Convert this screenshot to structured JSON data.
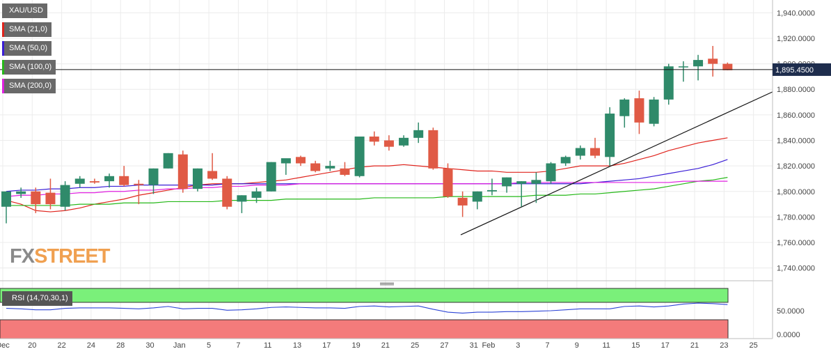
{
  "brand": {
    "logo_fx": "FX",
    "logo_street": "STREET"
  },
  "legend": [
    {
      "label": "XAU/USD",
      "color": "#696969"
    },
    {
      "label": "SMA (21,0)",
      "color": "#e0231c"
    },
    {
      "label": "SMA (50,0)",
      "color": "#3a1ed6"
    },
    {
      "label": "SMA (100,0)",
      "color": "#25b818"
    },
    {
      "label": "SMA (200,0)",
      "color": "#e020e0"
    }
  ],
  "rsi": {
    "label": "RSI (14,70,30,1)",
    "levels": [
      "50.0000",
      "0.0000"
    ],
    "upper_zone_color": "#7af07a",
    "lower_zone_color": "#f47b7b",
    "line_color": "#2b43d6"
  },
  "colors": {
    "bull": "#2f8a6a",
    "bear": "#e05a45",
    "grid": "#ececec"
  },
  "chart_data": {
    "type": "candlestick",
    "title": "XAU/USD",
    "ylim": [
      1730,
      1950
    ],
    "y_ticks": [
      "1,740.0000",
      "1,760.0000",
      "1,780.0000",
      "1,800.0000",
      "1,820.0000",
      "1,840.0000",
      "1,860.0000",
      "1,880.0000",
      "1,900.0000",
      "1,920.0000",
      "1,940.0000"
    ],
    "current_price": 1895.45,
    "current_price_label": "1,895.4500",
    "x_tick_labels": [
      "Dec",
      "20",
      "22",
      "24",
      "28",
      "30",
      "Jan",
      "5",
      "7",
      "11",
      "13",
      "17",
      "19",
      "21",
      "25",
      "27",
      "31",
      "Feb",
      "3",
      "7",
      "9",
      "11",
      "15",
      "17",
      "21",
      "23",
      "25"
    ],
    "candles": [
      {
        "o": 1788,
        "h": 1800,
        "l": 1775,
        "c": 1800
      },
      {
        "o": 1798,
        "h": 1803,
        "l": 1795,
        "c": 1800
      },
      {
        "o": 1800,
        "h": 1803,
        "l": 1783,
        "c": 1790
      },
      {
        "o": 1799,
        "h": 1810,
        "l": 1786,
        "c": 1790
      },
      {
        "o": 1788,
        "h": 1808,
        "l": 1785,
        "c": 1805
      },
      {
        "o": 1806,
        "h": 1812,
        "l": 1803,
        "c": 1810
      },
      {
        "o": 1808,
        "h": 1810,
        "l": 1806,
        "c": 1807
      },
      {
        "o": 1808,
        "h": 1814,
        "l": 1803,
        "c": 1812
      },
      {
        "o": 1812,
        "h": 1820,
        "l": 1804,
        "c": 1805
      },
      {
        "o": 1806,
        "h": 1809,
        "l": 1790,
        "c": 1805
      },
      {
        "o": 1805,
        "h": 1818,
        "l": 1798,
        "c": 1818
      },
      {
        "o": 1818,
        "h": 1830,
        "l": 1818,
        "c": 1830
      },
      {
        "o": 1829,
        "h": 1832,
        "l": 1799,
        "c": 1802
      },
      {
        "o": 1802,
        "h": 1818,
        "l": 1800,
        "c": 1818
      },
      {
        "o": 1816,
        "h": 1830,
        "l": 1809,
        "c": 1810
      },
      {
        "o": 1810,
        "h": 1812,
        "l": 1786,
        "c": 1788
      },
      {
        "o": 1792,
        "h": 1797,
        "l": 1783,
        "c": 1797
      },
      {
        "o": 1795,
        "h": 1803,
        "l": 1791,
        "c": 1800
      },
      {
        "o": 1800,
        "h": 1823,
        "l": 1800,
        "c": 1823
      },
      {
        "o": 1822,
        "h": 1825,
        "l": 1813,
        "c": 1826
      },
      {
        "o": 1827,
        "h": 1828,
        "l": 1820,
        "c": 1822
      },
      {
        "o": 1822,
        "h": 1824,
        "l": 1815,
        "c": 1816
      },
      {
        "o": 1818,
        "h": 1824,
        "l": 1816,
        "c": 1820
      },
      {
        "o": 1818,
        "h": 1823,
        "l": 1812,
        "c": 1813
      },
      {
        "o": 1812,
        "h": 1843,
        "l": 1811,
        "c": 1843
      },
      {
        "o": 1843,
        "h": 1847,
        "l": 1836,
        "c": 1839
      },
      {
        "o": 1840,
        "h": 1844,
        "l": 1832,
        "c": 1835
      },
      {
        "o": 1836,
        "h": 1844,
        "l": 1835,
        "c": 1842
      },
      {
        "o": 1842,
        "h": 1854,
        "l": 1838,
        "c": 1848
      },
      {
        "o": 1848,
        "h": 1850,
        "l": 1817,
        "c": 1818
      },
      {
        "o": 1818,
        "h": 1822,
        "l": 1795,
        "c": 1796
      },
      {
        "o": 1795,
        "h": 1800,
        "l": 1780,
        "c": 1789
      },
      {
        "o": 1792,
        "h": 1800,
        "l": 1786,
        "c": 1800
      },
      {
        "o": 1800,
        "h": 1810,
        "l": 1797,
        "c": 1801
      },
      {
        "o": 1804,
        "h": 1811,
        "l": 1799,
        "c": 1811
      },
      {
        "o": 1806,
        "h": 1808,
        "l": 1788,
        "c": 1808
      },
      {
        "o": 1806,
        "h": 1815,
        "l": 1791,
        "c": 1809
      },
      {
        "o": 1808,
        "h": 1823,
        "l": 1806,
        "c": 1822
      },
      {
        "o": 1822,
        "h": 1828,
        "l": 1820,
        "c": 1827
      },
      {
        "o": 1828,
        "h": 1836,
        "l": 1825,
        "c": 1834
      },
      {
        "o": 1834,
        "h": 1842,
        "l": 1826,
        "c": 1828
      },
      {
        "o": 1827,
        "h": 1866,
        "l": 1820,
        "c": 1861
      },
      {
        "o": 1859,
        "h": 1873,
        "l": 1850,
        "c": 1872
      },
      {
        "o": 1873,
        "h": 1879,
        "l": 1845,
        "c": 1854
      },
      {
        "o": 1853,
        "h": 1874,
        "l": 1851,
        "c": 1872
      },
      {
        "o": 1872,
        "h": 1900,
        "l": 1868,
        "c": 1898
      },
      {
        "o": 1898,
        "h": 1902,
        "l": 1886,
        "c": 1898
      },
      {
        "o": 1898,
        "h": 1907,
        "l": 1887,
        "c": 1903
      },
      {
        "o": 1904,
        "h": 1914,
        "l": 1890,
        "c": 1900
      },
      {
        "o": 1900,
        "h": 1901,
        "l": 1895,
        "c": 1895
      }
    ],
    "series": [
      {
        "name": "SMA (21,0)",
        "values": [
          1793,
          1790,
          1785,
          1784,
          1785,
          1787,
          1790,
          1792,
          1794,
          1797,
          1799,
          1801,
          1803,
          1805,
          1806,
          1806,
          1806,
          1807,
          1808,
          1809,
          1811,
          1813,
          1815,
          1817,
          1819,
          1820,
          1820,
          1821,
          1820,
          1819,
          1818,
          1817,
          1816,
          1816,
          1815,
          1815,
          1815,
          1816,
          1818,
          1820,
          1820,
          1820,
          1822,
          1825,
          1828,
          1832,
          1835,
          1838,
          1840,
          1842
        ]
      },
      {
        "name": "SMA (50,0)",
        "values": [
          1800,
          1801,
          1801,
          1802,
          1802,
          1803,
          1803,
          1804,
          1804,
          1805,
          1805,
          1805,
          1805,
          1805,
          1805,
          1806,
          1806,
          1806,
          1806,
          1806,
          1806,
          1806,
          1806,
          1806,
          1806,
          1806,
          1806,
          1806,
          1806,
          1806,
          1806,
          1806,
          1806,
          1806,
          1806,
          1806,
          1806,
          1806,
          1806,
          1806,
          1807,
          1808,
          1809,
          1810,
          1812,
          1814,
          1816,
          1818,
          1821,
          1825
        ]
      },
      {
        "name": "SMA (100,0)",
        "values": [
          1789,
          1789,
          1789,
          1789,
          1789,
          1790,
          1790,
          1790,
          1791,
          1791,
          1791,
          1792,
          1792,
          1792,
          1792,
          1793,
          1793,
          1793,
          1793,
          1794,
          1794,
          1794,
          1794,
          1794,
          1794,
          1795,
          1795,
          1795,
          1795,
          1795,
          1796,
          1796,
          1796,
          1796,
          1796,
          1796,
          1797,
          1797,
          1797,
          1798,
          1798,
          1799,
          1800,
          1801,
          1802,
          1804,
          1806,
          1808,
          1809,
          1811
        ]
      },
      {
        "name": "SMA (200,0)",
        "values": [
          1796,
          1797,
          1797,
          1798,
          1798,
          1799,
          1799,
          1800,
          1800,
          1801,
          1801,
          1802,
          1802,
          1803,
          1803,
          1804,
          1804,
          1805,
          1805,
          1805,
          1806,
          1806,
          1806,
          1806,
          1806,
          1806,
          1806,
          1806,
          1806,
          1806,
          1806,
          1806,
          1806,
          1806,
          1806,
          1807,
          1807,
          1807,
          1807,
          1807,
          1807,
          1807,
          1807,
          1807,
          1807,
          1807,
          1808,
          1808,
          1808,
          1808
        ]
      }
    ],
    "rsi_values": [
      55,
      54,
      52,
      52,
      55,
      56,
      56,
      56,
      55,
      54,
      56,
      59,
      54,
      55,
      55,
      51,
      52,
      54,
      57,
      58,
      57,
      56,
      56,
      55,
      59,
      60,
      58,
      59,
      60,
      53,
      47,
      45,
      47,
      47,
      48,
      48,
      49,
      50,
      52,
      54,
      54,
      54,
      59,
      60,
      58,
      60,
      64,
      66,
      65,
      63
    ]
  }
}
